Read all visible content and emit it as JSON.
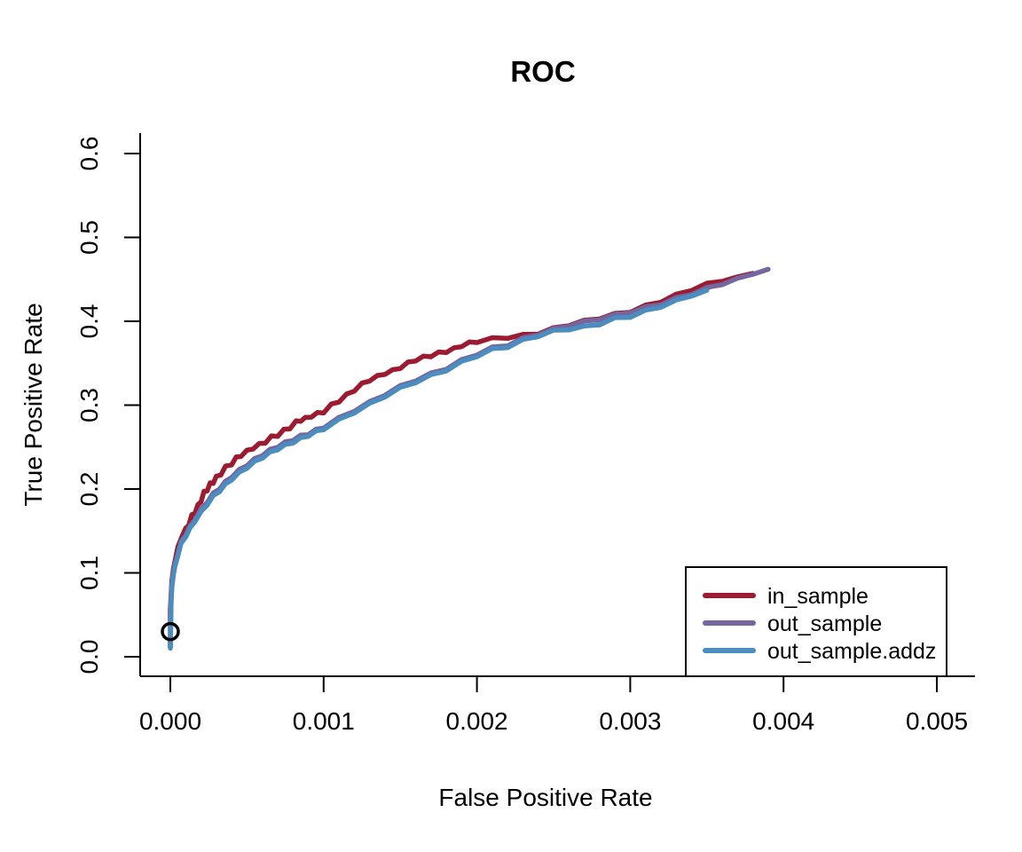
{
  "page": {
    "background": "#ffffff",
    "text_color": "#000000"
  },
  "chart_data": {
    "type": "line",
    "title": "ROC",
    "xlabel": "False Positive Rate",
    "ylabel": "True Positive Rate",
    "xlim": [
      0,
      0.005
    ],
    "ylim": [
      0,
      0.6
    ],
    "grid": false,
    "axis_color": "#000000",
    "x_ticks": [
      {
        "value": 0.0,
        "label": "0.000"
      },
      {
        "value": 0.001,
        "label": "0.001"
      },
      {
        "value": 0.002,
        "label": "0.002"
      },
      {
        "value": 0.003,
        "label": "0.003"
      },
      {
        "value": 0.004,
        "label": "0.004"
      },
      {
        "value": 0.005,
        "label": "0.005"
      }
    ],
    "y_ticks": [
      {
        "value": 0.0,
        "label": "0.0"
      },
      {
        "value": 0.1,
        "label": "0.1"
      },
      {
        "value": 0.2,
        "label": "0.2"
      },
      {
        "value": 0.3,
        "label": "0.3"
      },
      {
        "value": 0.4,
        "label": "0.4"
      },
      {
        "value": 0.5,
        "label": "0.5"
      },
      {
        "value": 0.6,
        "label": "0.6"
      }
    ],
    "marker": {
      "shape": "open-circle",
      "x": 0.0,
      "y": 0.03,
      "color": "#000000"
    },
    "legend_position": "bottom-right",
    "series": [
      {
        "name": "in_sample",
        "color": "#9B1B31",
        "points": [
          [
            0.0,
            0.012
          ],
          [
            0.0,
            0.055
          ],
          [
            5e-06,
            0.075
          ],
          [
            1e-05,
            0.09
          ],
          [
            2e-05,
            0.105
          ],
          [
            3e-05,
            0.115
          ],
          [
            5e-05,
            0.13
          ],
          [
            7e-05,
            0.142
          ],
          [
            0.0001,
            0.152
          ],
          [
            0.00012,
            0.158
          ],
          [
            0.00014,
            0.168
          ],
          [
            0.00016,
            0.172
          ],
          [
            0.00018,
            0.18
          ],
          [
            0.0002,
            0.186
          ],
          [
            0.00022,
            0.196
          ],
          [
            0.00024,
            0.199
          ],
          [
            0.00026,
            0.206
          ],
          [
            0.00028,
            0.208
          ],
          [
            0.0003,
            0.214
          ],
          [
            0.00033,
            0.218
          ],
          [
            0.00036,
            0.226
          ],
          [
            0.0004,
            0.23
          ],
          [
            0.00043,
            0.237
          ],
          [
            0.00046,
            0.24
          ],
          [
            0.0005,
            0.245
          ],
          [
            0.00054,
            0.249
          ],
          [
            0.00058,
            0.253
          ],
          [
            0.00062,
            0.256
          ],
          [
            0.00066,
            0.262
          ],
          [
            0.0007,
            0.264
          ],
          [
            0.00074,
            0.27
          ],
          [
            0.00078,
            0.273
          ],
          [
            0.00082,
            0.28
          ],
          [
            0.00085,
            0.282
          ],
          [
            0.00088,
            0.284
          ],
          [
            0.00092,
            0.287
          ],
          [
            0.00096,
            0.29
          ],
          [
            0.001,
            0.292
          ],
          [
            0.00105,
            0.3
          ],
          [
            0.0011,
            0.305
          ],
          [
            0.00115,
            0.312
          ],
          [
            0.0012,
            0.318
          ],
          [
            0.00125,
            0.325
          ],
          [
            0.0013,
            0.33
          ],
          [
            0.00135,
            0.334
          ],
          [
            0.0014,
            0.338
          ],
          [
            0.00145,
            0.341
          ],
          [
            0.0015,
            0.345
          ],
          [
            0.00155,
            0.35
          ],
          [
            0.0016,
            0.354
          ],
          [
            0.00165,
            0.357
          ],
          [
            0.0017,
            0.359
          ],
          [
            0.00175,
            0.362
          ],
          [
            0.0018,
            0.364
          ],
          [
            0.00185,
            0.367
          ],
          [
            0.0019,
            0.371
          ],
          [
            0.00195,
            0.374
          ],
          [
            0.002,
            0.376
          ],
          [
            0.0021,
            0.379
          ],
          [
            0.0022,
            0.381
          ],
          [
            0.0023,
            0.383
          ],
          [
            0.0024,
            0.386
          ],
          [
            0.0025,
            0.391
          ],
          [
            0.0026,
            0.396
          ],
          [
            0.0027,
            0.4
          ],
          [
            0.0028,
            0.404
          ],
          [
            0.0029,
            0.408
          ],
          [
            0.003,
            0.412
          ],
          [
            0.0031,
            0.418
          ],
          [
            0.0032,
            0.424
          ],
          [
            0.0033,
            0.431
          ],
          [
            0.0034,
            0.438
          ],
          [
            0.0035,
            0.444
          ],
          [
            0.0036,
            0.449
          ],
          [
            0.0037,
            0.453
          ],
          [
            0.0038,
            0.457
          ]
        ]
      },
      {
        "name": "out_sample",
        "color": "#7566A0",
        "points": [
          [
            0.0,
            0.013
          ],
          [
            5e-06,
            0.07
          ],
          [
            1e-05,
            0.085
          ],
          [
            2e-05,
            0.1
          ],
          [
            3e-05,
            0.11
          ],
          [
            5e-05,
            0.124
          ],
          [
            7e-05,
            0.136
          ],
          [
            0.0001,
            0.146
          ],
          [
            0.00013,
            0.155
          ],
          [
            0.00016,
            0.164
          ],
          [
            0.0002,
            0.175
          ],
          [
            0.00024,
            0.185
          ],
          [
            0.00028,
            0.194
          ],
          [
            0.00032,
            0.201
          ],
          [
            0.00036,
            0.208
          ],
          [
            0.0004,
            0.215
          ],
          [
            0.00045,
            0.222
          ],
          [
            0.0005,
            0.229
          ],
          [
            0.00055,
            0.235
          ],
          [
            0.0006,
            0.241
          ],
          [
            0.00065,
            0.246
          ],
          [
            0.0007,
            0.251
          ],
          [
            0.00075,
            0.255
          ],
          [
            0.0008,
            0.259
          ],
          [
            0.00085,
            0.263
          ],
          [
            0.0009,
            0.266
          ],
          [
            0.00095,
            0.27
          ],
          [
            0.001,
            0.274
          ],
          [
            0.0011,
            0.284
          ],
          [
            0.0012,
            0.294
          ],
          [
            0.0013,
            0.303
          ],
          [
            0.0014,
            0.313
          ],
          [
            0.0015,
            0.322
          ],
          [
            0.0016,
            0.33
          ],
          [
            0.0017,
            0.337
          ],
          [
            0.0018,
            0.344
          ],
          [
            0.0019,
            0.353
          ],
          [
            0.002,
            0.361
          ],
          [
            0.0021,
            0.368
          ],
          [
            0.0022,
            0.372
          ],
          [
            0.0023,
            0.379
          ],
          [
            0.0024,
            0.385
          ],
          [
            0.0025,
            0.39
          ],
          [
            0.0026,
            0.395
          ],
          [
            0.0027,
            0.399
          ],
          [
            0.0028,
            0.403
          ],
          [
            0.0029,
            0.407
          ],
          [
            0.003,
            0.411
          ],
          [
            0.0031,
            0.416
          ],
          [
            0.0032,
            0.421
          ],
          [
            0.0033,
            0.427
          ],
          [
            0.0034,
            0.433
          ],
          [
            0.0035,
            0.439
          ],
          [
            0.0036,
            0.445
          ],
          [
            0.0037,
            0.45
          ],
          [
            0.0038,
            0.456
          ],
          [
            0.0039,
            0.462
          ]
        ]
      },
      {
        "name": "out_sample.addz",
        "color": "#4A8DBE",
        "points": [
          [
            0.0,
            0.01
          ],
          [
            5e-06,
            0.065
          ],
          [
            1e-05,
            0.082
          ],
          [
            2e-05,
            0.098
          ],
          [
            3e-05,
            0.108
          ],
          [
            5e-05,
            0.122
          ],
          [
            7e-05,
            0.134
          ],
          [
            0.0001,
            0.144
          ],
          [
            0.00013,
            0.153
          ],
          [
            0.00016,
            0.162
          ],
          [
            0.0002,
            0.172
          ],
          [
            0.00024,
            0.182
          ],
          [
            0.00028,
            0.191
          ],
          [
            0.00032,
            0.198
          ],
          [
            0.00036,
            0.205
          ],
          [
            0.0004,
            0.212
          ],
          [
            0.00045,
            0.219
          ],
          [
            0.0005,
            0.226
          ],
          [
            0.00055,
            0.232
          ],
          [
            0.0006,
            0.238
          ],
          [
            0.00065,
            0.243
          ],
          [
            0.0007,
            0.248
          ],
          [
            0.00075,
            0.252
          ],
          [
            0.0008,
            0.256
          ],
          [
            0.00085,
            0.26
          ],
          [
            0.0009,
            0.264
          ],
          [
            0.00095,
            0.268
          ],
          [
            0.001,
            0.272
          ],
          [
            0.0011,
            0.282
          ],
          [
            0.0012,
            0.292
          ],
          [
            0.0013,
            0.301
          ],
          [
            0.0014,
            0.311
          ],
          [
            0.0015,
            0.32
          ],
          [
            0.0016,
            0.328
          ],
          [
            0.0017,
            0.335
          ],
          [
            0.0018,
            0.342
          ],
          [
            0.0019,
            0.351
          ],
          [
            0.002,
            0.359
          ],
          [
            0.0021,
            0.366
          ],
          [
            0.0022,
            0.37
          ],
          [
            0.0023,
            0.377
          ],
          [
            0.0024,
            0.383
          ],
          [
            0.0025,
            0.388
          ],
          [
            0.0026,
            0.391
          ],
          [
            0.0027,
            0.393
          ],
          [
            0.0028,
            0.397
          ],
          [
            0.0029,
            0.403
          ],
          [
            0.003,
            0.406
          ],
          [
            0.0031,
            0.412
          ],
          [
            0.0032,
            0.418
          ],
          [
            0.0033,
            0.424
          ],
          [
            0.0034,
            0.43
          ],
          [
            0.0035,
            0.437
          ]
        ]
      }
    ]
  }
}
